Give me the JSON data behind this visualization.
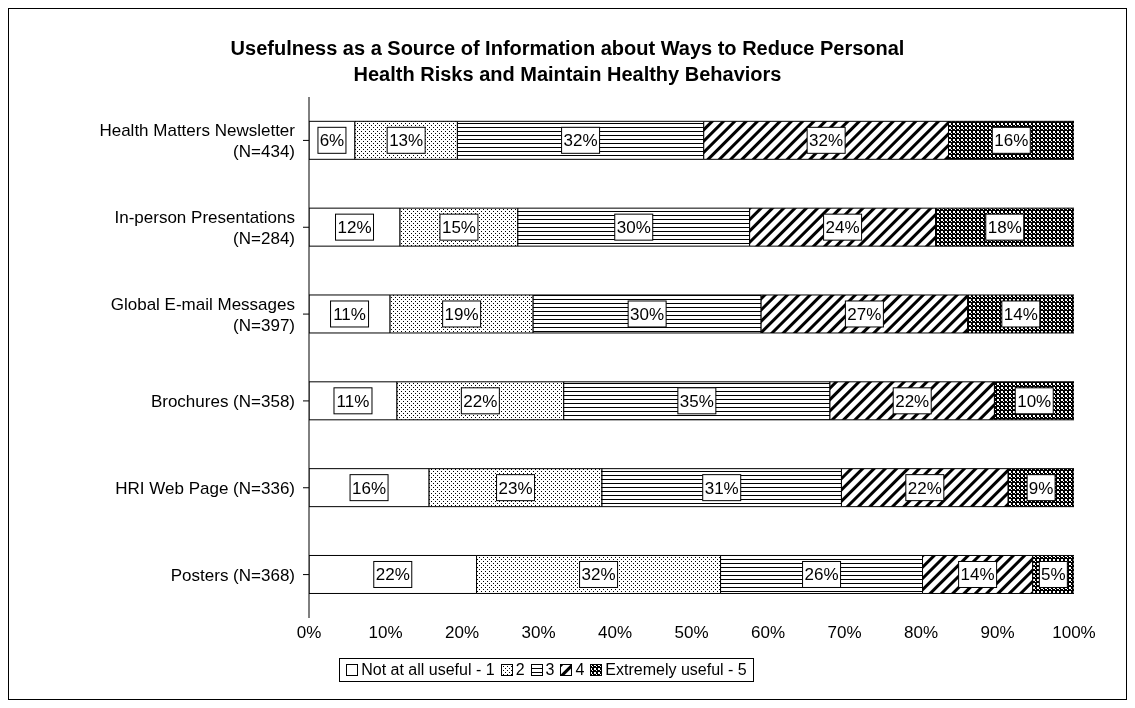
{
  "chart_data": {
    "type": "bar",
    "orientation": "horizontal",
    "stacked": true,
    "title": "Usefulness as a Source of Information about Ways to Reduce Personal Health Risks and Maintain Healthy Behaviors",
    "categories": [
      "Health Matters Newsletter (N=434)",
      "In-person Presentations (N=284)",
      "Global E-mail Messages (N=397)",
      "Brochures (N=358)",
      "HRI Web Page (N=336)",
      "Posters (N=368)"
    ],
    "series": [
      {
        "name": "Not at all useful - 1",
        "color": "#ffffff",
        "values": [
          6,
          11.9,
          10.6,
          11.5,
          15.7,
          21.9
        ],
        "value_labels": [
          "6%",
          "12%",
          "11%",
          "11%",
          "16%",
          "22%"
        ]
      },
      {
        "name": "2",
        "color": "#000000",
        "values": [
          13.4,
          15.4,
          18.7,
          21.8,
          22.6,
          31.9
        ],
        "value_labels": [
          "13%",
          "15%",
          "19%",
          "22%",
          "23%",
          "32%"
        ]
      },
      {
        "name": "3",
        "color": "#000000",
        "values": [
          32.2,
          30.3,
          29.8,
          34.8,
          31.3,
          26.4
        ],
        "value_labels": [
          "32%",
          "30%",
          "30%",
          "35%",
          "31%",
          "26%"
        ]
      },
      {
        "name": "4",
        "color": "#000000",
        "values": [
          32,
          24.3,
          27,
          21.5,
          21.8,
          14.4
        ],
        "value_labels": [
          "32%",
          "24%",
          "27%",
          "22%",
          "22%",
          "14%"
        ]
      },
      {
        "name": "Extremely useful - 5",
        "color": "#000000",
        "values": [
          16.4,
          18.1,
          13.9,
          10.4,
          8.6,
          5.4
        ],
        "value_labels": [
          "16%",
          "18%",
          "14%",
          "10%",
          "9%",
          "5%"
        ]
      }
    ],
    "xlim": [
      0,
      100
    ],
    "xticks": [
      {
        "value": 0,
        "label": "0%"
      },
      {
        "value": 10,
        "label": "10%"
      },
      {
        "value": 20,
        "label": "20%"
      },
      {
        "value": 30,
        "label": "30%"
      },
      {
        "value": 40,
        "label": "40%"
      },
      {
        "value": 50,
        "label": "50%"
      },
      {
        "value": 60,
        "label": "60%"
      },
      {
        "value": 70,
        "label": "70%"
      },
      {
        "value": 80,
        "label": "80%"
      },
      {
        "value": 90,
        "label": "90%"
      },
      {
        "value": 100,
        "label": "100%"
      }
    ],
    "grid": false,
    "legend": "bottom"
  }
}
